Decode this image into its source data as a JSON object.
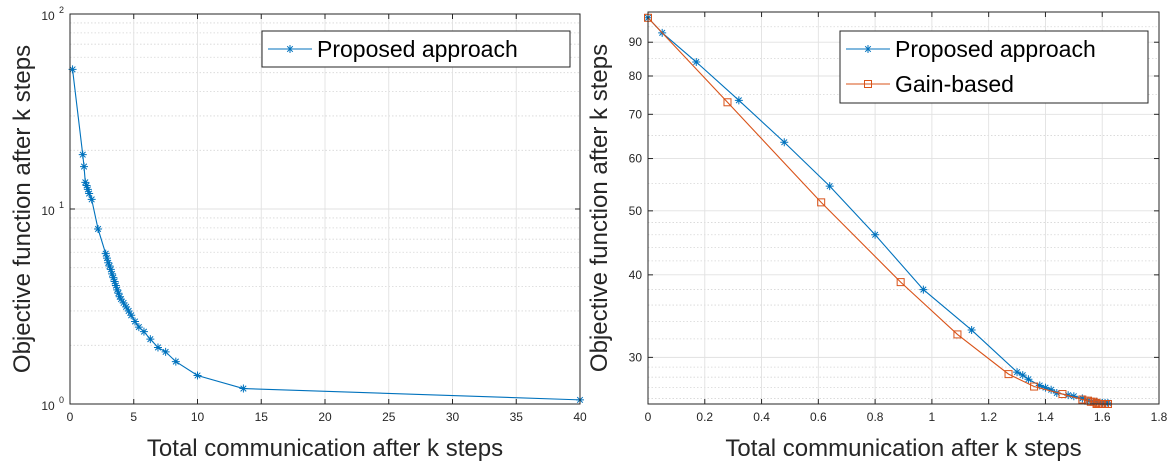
{
  "colors": {
    "proposed": "#0072BD",
    "gain": "#D95319"
  },
  "chart_data": [
    {
      "type": "line",
      "xlabel": "Total communication after k steps",
      "ylabel": "Objective function after k steps",
      "xlim": [
        0,
        40
      ],
      "ylim": [
        1,
        100
      ],
      "yscale": "log",
      "grid": true,
      "legend_position": "top-right",
      "xticks": [
        "0",
        "5",
        "10",
        "15",
        "20",
        "25",
        "30",
        "35",
        "40"
      ],
      "yticks": [
        {
          "base": "10",
          "exp": "0"
        },
        {
          "base": "10",
          "exp": "1"
        },
        {
          "base": "10",
          "exp": "2"
        }
      ],
      "series": [
        {
          "name": "Proposed approach",
          "marker": "asterisk",
          "x": [
            0.2,
            1.0,
            1.1,
            1.2,
            1.3,
            1.4,
            1.5,
            1.7,
            2.2,
            2.8,
            2.9,
            3.0,
            3.1,
            3.2,
            3.3,
            3.4,
            3.5,
            3.6,
            3.7,
            3.8,
            3.9,
            4.0,
            4.2,
            4.4,
            4.6,
            4.8,
            5.1,
            5.4,
            5.8,
            6.3,
            6.9,
            7.5,
            8.3,
            10.0,
            13.6,
            40.0
          ],
          "y": [
            52,
            19.0,
            16.5,
            13.7,
            13.2,
            12.6,
            12.0,
            11.2,
            7.9,
            5.9,
            5.6,
            5.3,
            5.1,
            4.9,
            4.65,
            4.45,
            4.25,
            4.05,
            3.85,
            3.7,
            3.55,
            3.45,
            3.3,
            3.15,
            3.0,
            2.85,
            2.65,
            2.48,
            2.35,
            2.15,
            1.95,
            1.85,
            1.65,
            1.4,
            1.2,
            1.05
          ]
        }
      ]
    },
    {
      "type": "line",
      "xlabel": "Total communication after k steps",
      "ylabel": "Objective function after k steps",
      "xlim": [
        0,
        1.8
      ],
      "ylim": [
        25.5,
        100
      ],
      "yscale": "log",
      "grid": true,
      "legend_position": "top-right",
      "xticks": [
        "0",
        "0.2",
        "0.4",
        "0.6",
        "0.8",
        "1",
        "1.2",
        "1.4",
        "1.6",
        "1.8"
      ],
      "yticks": [
        "30",
        "40",
        "50",
        "60",
        "70",
        "80",
        "90"
      ],
      "series": [
        {
          "name": "Proposed approach",
          "marker": "asterisk",
          "x": [
            0.0,
            0.05,
            0.17,
            0.32,
            0.48,
            0.64,
            0.8,
            0.97,
            1.14,
            1.3,
            1.32,
            1.34,
            1.38,
            1.4,
            1.42,
            1.44,
            1.48,
            1.5,
            1.53,
            1.55,
            1.57,
            1.58,
            1.6,
            1.61,
            1.62
          ],
          "y": [
            98,
            93,
            84,
            73.5,
            63.5,
            54.5,
            46,
            38,
            33,
            28.5,
            28.2,
            27.8,
            27.2,
            27.0,
            26.8,
            26.5,
            26.3,
            26.2,
            26.0,
            25.8,
            25.7,
            25.7,
            25.6,
            25.6,
            25.6
          ]
        },
        {
          "name": "Gain-based",
          "marker": "square",
          "x": [
            0.0,
            0.28,
            0.61,
            0.89,
            1.09,
            1.27,
            1.36,
            1.46,
            1.53,
            1.55,
            1.56,
            1.57,
            1.58,
            1.58,
            1.59,
            1.6,
            1.6,
            1.61,
            1.62,
            1.62
          ],
          "y": [
            98,
            73,
            51.5,
            39,
            32.5,
            28.3,
            27.1,
            26.4,
            25.9,
            25.8,
            25.7,
            25.7,
            25.6,
            25.5,
            25.5,
            25.5,
            25.5,
            25.5,
            25.5,
            25.5
          ]
        }
      ]
    }
  ]
}
